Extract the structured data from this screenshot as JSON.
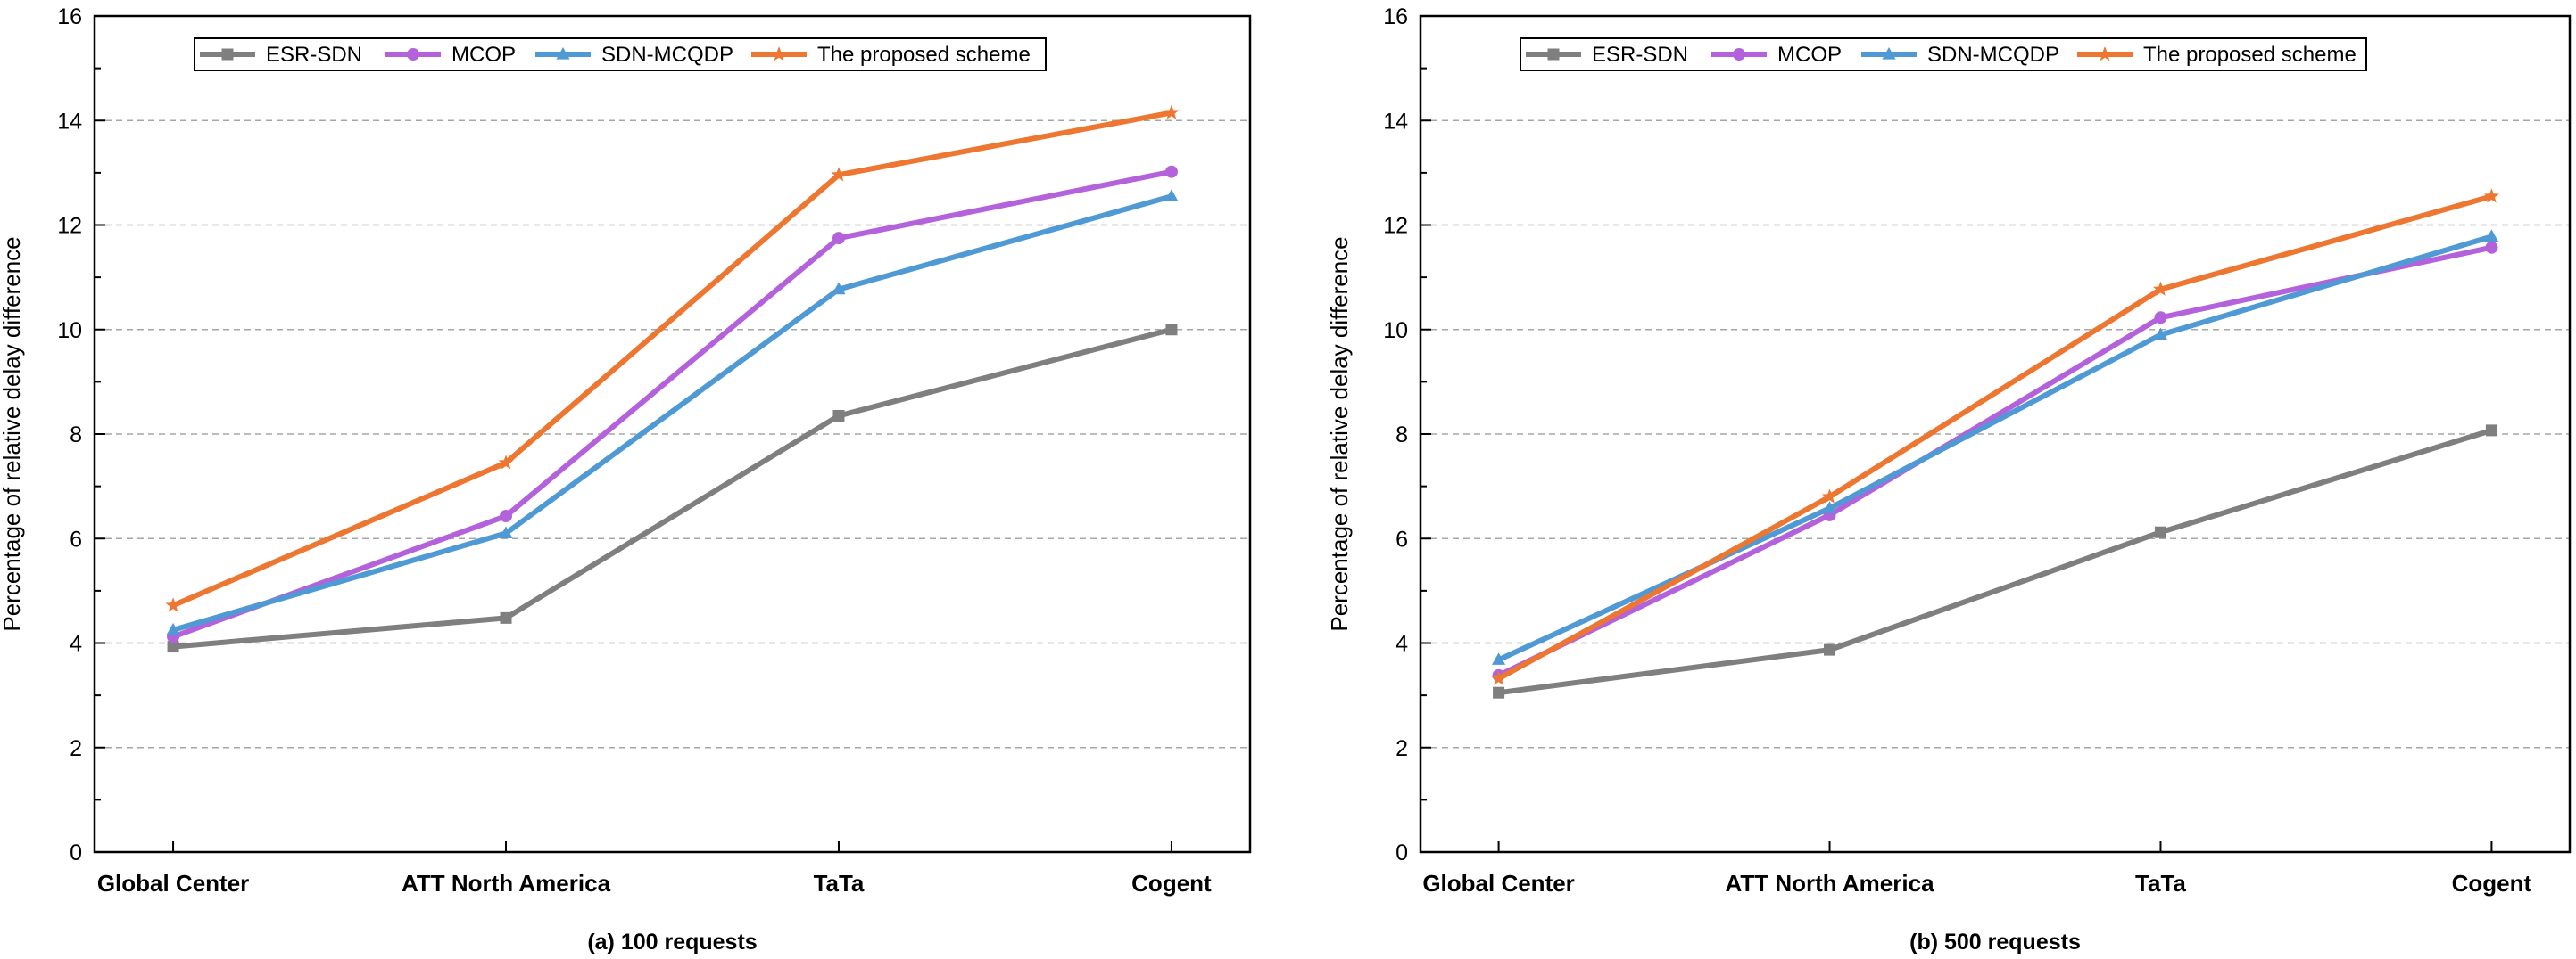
{
  "chart_data": [
    {
      "type": "line",
      "caption": "(a) 100 requests",
      "xlabel": "",
      "ylabel": "Percentage of relative delay difference",
      "categories": [
        "Global Center",
        "ATT North America",
        "TaTa",
        "Cogent"
      ],
      "ylim": [
        0,
        16
      ],
      "yticks": [
        0,
        2,
        4,
        6,
        8,
        10,
        12,
        14,
        16
      ],
      "grid": "horizontal dashed",
      "legend_position": "top-left",
      "series": [
        {
          "name": "ESR-SDN",
          "color": "#7f7f7f",
          "marker": "square",
          "values": [
            3.93,
            4.48,
            8.35,
            10.0
          ]
        },
        {
          "name": "MCOP",
          "color": "#b462dc",
          "marker": "circle",
          "values": [
            4.12,
            6.43,
            11.75,
            13.02
          ]
        },
        {
          "name": "SDN-MCQDP",
          "color": "#4f9ad4",
          "marker": "triangle",
          "values": [
            4.25,
            6.1,
            10.77,
            12.55
          ]
        },
        {
          "name": "The proposed scheme",
          "color": "#ed7631",
          "marker": "star",
          "values": [
            4.72,
            7.45,
            12.96,
            14.15
          ]
        }
      ]
    },
    {
      "type": "line",
      "caption": "(b) 500 requests",
      "xlabel": "",
      "ylabel": "Percentage of relative delay difference",
      "categories": [
        "Global Center",
        "ATT North America",
        "TaTa",
        "Cogent"
      ],
      "ylim": [
        0,
        16
      ],
      "yticks": [
        0,
        2,
        4,
        6,
        8,
        10,
        12,
        14,
        16
      ],
      "grid": "horizontal dashed",
      "legend_position": "top-left",
      "series": [
        {
          "name": "ESR-SDN",
          "color": "#7f7f7f",
          "marker": "square",
          "values": [
            3.05,
            3.87,
            6.12,
            8.07
          ]
        },
        {
          "name": "MCOP",
          "color": "#b462dc",
          "marker": "circle",
          "values": [
            3.38,
            6.45,
            10.23,
            11.57
          ]
        },
        {
          "name": "SDN-MCQDP",
          "color": "#4f9ad4",
          "marker": "triangle",
          "values": [
            3.68,
            6.58,
            9.9,
            11.78
          ]
        },
        {
          "name": "The proposed scheme",
          "color": "#ed7631",
          "marker": "star",
          "values": [
            3.32,
            6.8,
            10.77,
            12.55
          ]
        }
      ]
    }
  ]
}
